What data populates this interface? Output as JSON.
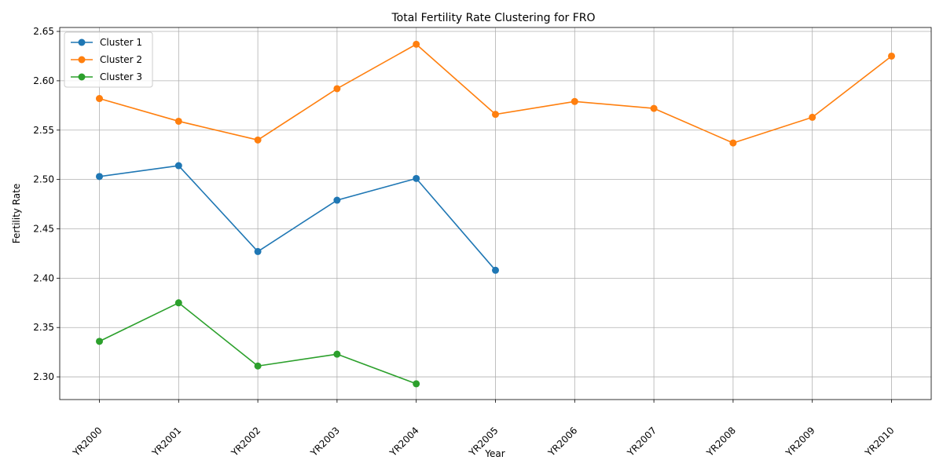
{
  "chart_data": {
    "type": "line",
    "title": "Total Fertility Rate Clustering for FRO",
    "xlabel": "Year",
    "ylabel": "Fertility Rate",
    "categories": [
      "YR2000",
      "YR2001",
      "YR2002",
      "YR2003",
      "YR2004",
      "YR2005",
      "YR2006",
      "YR2007",
      "YR2008",
      "YR2009",
      "YR2010"
    ],
    "ylim": [
      2.277,
      2.654
    ],
    "yticks": [
      2.3,
      2.35,
      2.4,
      2.45,
      2.5,
      2.55,
      2.6,
      2.65
    ],
    "ytick_labels": [
      "2.30",
      "2.35",
      "2.40",
      "2.45",
      "2.50",
      "2.55",
      "2.60",
      "2.65"
    ],
    "grid": true,
    "legend_position": "top-left",
    "marker": "circle",
    "series": [
      {
        "name": "Cluster 1",
        "color": "#1f77b4",
        "values": [
          2.503,
          2.514,
          2.427,
          2.479,
          2.501,
          2.408,
          null,
          null,
          null,
          null,
          null
        ]
      },
      {
        "name": "Cluster 2",
        "color": "#ff7f0e",
        "values": [
          2.582,
          2.559,
          2.54,
          2.592,
          2.637,
          2.566,
          2.579,
          2.572,
          2.537,
          2.563,
          2.625
        ]
      },
      {
        "name": "Cluster 3",
        "color": "#2ca02c",
        "values": [
          2.336,
          2.375,
          2.311,
          2.323,
          2.293,
          null,
          null,
          null,
          null,
          null,
          null
        ]
      }
    ]
  }
}
